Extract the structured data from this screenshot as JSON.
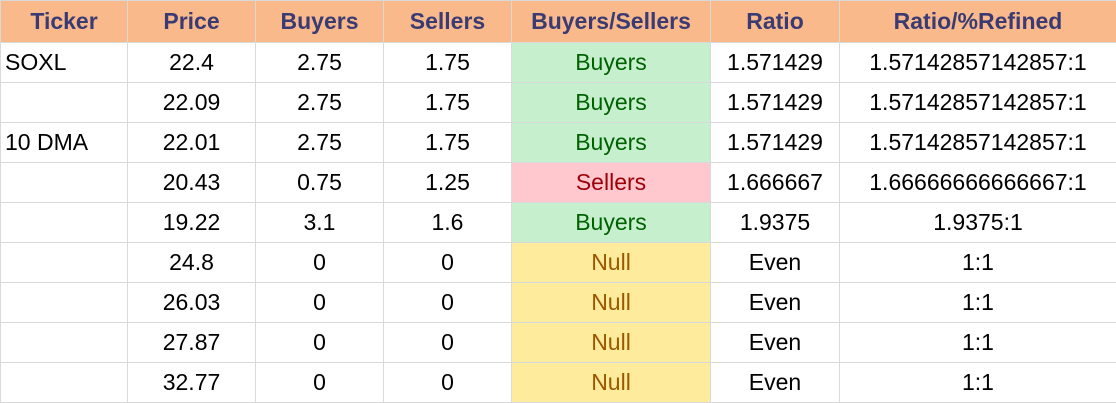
{
  "table": {
    "headers": [
      "Ticker",
      "Price",
      "Buyers",
      "Sellers",
      "Buyers/Sellers",
      "Ratio",
      "Ratio/%Refined"
    ],
    "rows": [
      {
        "ticker": "SOXL",
        "price": "22.4",
        "buyers": "2.75",
        "sellers": "1.75",
        "signal": "Buyers",
        "ratio": "1.571429",
        "refined": "1.57142857142857:1"
      },
      {
        "ticker": "",
        "price": "22.09",
        "buyers": "2.75",
        "sellers": "1.75",
        "signal": "Buyers",
        "ratio": "1.571429",
        "refined": "1.57142857142857:1"
      },
      {
        "ticker": "10 DMA",
        "price": "22.01",
        "buyers": "2.75",
        "sellers": "1.75",
        "signal": "Buyers",
        "ratio": "1.571429",
        "refined": "1.57142857142857:1"
      },
      {
        "ticker": "",
        "price": "20.43",
        "buyers": "0.75",
        "sellers": "1.25",
        "signal": "Sellers",
        "ratio": "1.666667",
        "refined": "1.66666666666667:1"
      },
      {
        "ticker": "",
        "price": "19.22",
        "buyers": "3.1",
        "sellers": "1.6",
        "signal": "Buyers",
        "ratio": "1.9375",
        "refined": "1.9375:1"
      },
      {
        "ticker": "",
        "price": "24.8",
        "buyers": "0",
        "sellers": "0",
        "signal": "Null",
        "ratio": "Even",
        "refined": "1:1"
      },
      {
        "ticker": "",
        "price": "26.03",
        "buyers": "0",
        "sellers": "0",
        "signal": "Null",
        "ratio": "Even",
        "refined": "1:1"
      },
      {
        "ticker": "",
        "price": "27.87",
        "buyers": "0",
        "sellers": "0",
        "signal": "Null",
        "ratio": "Even",
        "refined": "1:1"
      },
      {
        "ticker": "",
        "price": "32.77",
        "buyers": "0",
        "sellers": "0",
        "signal": "Null",
        "ratio": "Even",
        "refined": "1:1"
      }
    ]
  },
  "colors": {
    "header_bg": "#f9b98a",
    "header_text": "#3b3b74",
    "buyers_bg": "#c6efce",
    "buyers_text": "#006100",
    "sellers_bg": "#ffc7ce",
    "sellers_text": "#9c0006",
    "null_bg": "#ffeb9c",
    "null_text": "#9c5700"
  }
}
